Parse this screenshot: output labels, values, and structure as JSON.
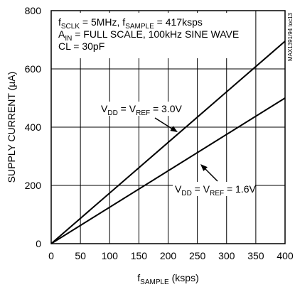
{
  "chart_data": {
    "type": "line",
    "title": "",
    "xlabel": {
      "main": "f",
      "sub": "SAMPLE",
      "tail": " (ksps)"
    },
    "ylabel": "SUPPLY CURRENT (µA)",
    "xlim": [
      0,
      400
    ],
    "ylim": [
      0,
      800
    ],
    "x_ticks": [
      0,
      50,
      100,
      150,
      200,
      250,
      300,
      350,
      400
    ],
    "y_ticks": [
      0,
      200,
      400,
      600,
      800
    ],
    "grid": true,
    "conditions": [
      {
        "parts": [
          {
            "t": "f"
          },
          {
            "t": "SCLK",
            "sub": true
          },
          {
            "t": " = 5MHz, f"
          },
          {
            "t": "SAMPLE",
            "sub": true
          },
          {
            "t": " = 417ksps"
          }
        ]
      },
      {
        "parts": [
          {
            "t": "A"
          },
          {
            "t": "IN",
            "sub": true
          },
          {
            "t": " = FULL SCALE, 100kHz SINE WAVE"
          }
        ]
      },
      {
        "parts": [
          {
            "t": "CL = 30pF"
          }
        ]
      }
    ],
    "series": [
      {
        "label_parts": [
          {
            "t": "V"
          },
          {
            "t": "DD",
            "sub": true
          },
          {
            "t": " = V"
          },
          {
            "t": "REF",
            "sub": true
          },
          {
            "t": " = 3.0V"
          }
        ],
        "x": [
          0,
          400
        ],
        "y": [
          0,
          695
        ]
      },
      {
        "label_parts": [
          {
            "t": "V"
          },
          {
            "t": "DD",
            "sub": true
          },
          {
            "t": " = V"
          },
          {
            "t": "REF",
            "sub": true
          },
          {
            "t": " = 1.6V"
          }
        ],
        "x": [
          0,
          400
        ],
        "y": [
          0,
          500
        ]
      }
    ],
    "watermark": "MAX1391/94 toc13"
  }
}
